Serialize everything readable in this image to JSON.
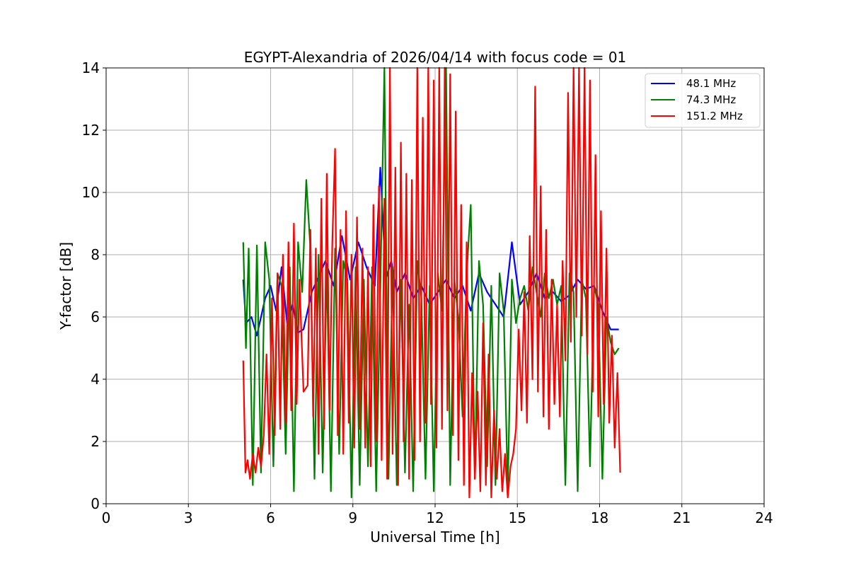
{
  "chart_data": {
    "type": "line",
    "title": "EGYPT-Alexandria of 2026/04/14 with focus code = 01",
    "xlabel": "Universal Time [h]",
    "ylabel": "Y-factor [dB]",
    "xlim": [
      0,
      24
    ],
    "ylim": [
      0,
      14
    ],
    "xticks": [
      "0",
      "3",
      "6",
      "9",
      "12",
      "15",
      "18",
      "21",
      "24"
    ],
    "yticks": [
      "0",
      "2",
      "4",
      "6",
      "8",
      "10",
      "12",
      "14"
    ],
    "grid": true,
    "legend_position": "top-right",
    "series": [
      {
        "name": " 48.1 MHz",
        "color": "#0000ff",
        "x": [
          5.0,
          5.1,
          5.3,
          5.5,
          5.8,
          6.0,
          6.2,
          6.4,
          6.6,
          6.8,
          7.0,
          7.2,
          7.5,
          7.8,
          8.0,
          8.3,
          8.6,
          8.9,
          9.2,
          9.5,
          9.8,
          10.0,
          10.2,
          10.4,
          10.6,
          10.9,
          11.2,
          11.5,
          11.8,
          12.1,
          12.4,
          12.7,
          13.0,
          13.3,
          13.6,
          13.9,
          14.2,
          14.5,
          14.8,
          15.1,
          15.4,
          15.7,
          16.0,
          16.3,
          16.6,
          16.9,
          17.2,
          17.5,
          17.8,
          18.1,
          18.4,
          18.7
        ],
        "y": [
          7.2,
          5.8,
          6.0,
          5.4,
          6.6,
          7.0,
          6.2,
          7.6,
          5.8,
          6.4,
          5.5,
          5.6,
          6.8,
          7.4,
          7.8,
          7.0,
          8.6,
          7.2,
          8.4,
          7.6,
          7.0,
          10.8,
          7.2,
          7.8,
          6.8,
          7.4,
          6.6,
          7.0,
          6.4,
          6.8,
          7.2,
          6.6,
          7.0,
          6.2,
          7.4,
          6.8,
          6.4,
          6.0,
          8.4,
          6.4,
          6.8,
          7.4,
          6.6,
          6.8,
          6.5,
          6.7,
          7.2,
          6.9,
          7.0,
          6.2,
          5.6,
          5.6
        ]
      },
      {
        "name": " 74.3 MHz",
        "color": "#008000",
        "x": [
          5.0,
          5.1,
          5.2,
          5.35,
          5.5,
          5.65,
          5.8,
          5.95,
          6.1,
          6.25,
          6.4,
          6.55,
          6.7,
          6.85,
          7.0,
          7.15,
          7.3,
          7.45,
          7.6,
          7.75,
          7.9,
          8.05,
          8.2,
          8.35,
          8.5,
          8.65,
          8.8,
          8.95,
          9.1,
          9.25,
          9.4,
          9.55,
          9.7,
          9.85,
          10.0,
          10.15,
          10.3,
          10.45,
          10.6,
          10.75,
          10.9,
          11.05,
          11.2,
          11.35,
          11.5,
          11.65,
          11.8,
          11.95,
          12.1,
          12.25,
          12.4,
          12.55,
          12.7,
          12.85,
          13.0,
          13.15,
          13.3,
          13.45,
          13.6,
          13.75,
          13.9,
          14.05,
          14.2,
          14.35,
          14.5,
          14.65,
          14.8,
          14.95,
          15.1,
          15.25,
          15.4,
          15.55,
          15.7,
          15.85,
          16.0,
          16.15,
          16.3,
          16.45,
          16.6,
          16.75,
          16.9,
          17.05,
          17.2,
          17.35,
          17.5,
          17.65,
          17.8,
          17.95,
          18.1,
          18.25,
          18.4,
          18.55,
          18.7
        ],
        "y": [
          8.4,
          5.0,
          8.2,
          0.6,
          8.3,
          1.0,
          8.4,
          7.2,
          1.2,
          7.4,
          7.0,
          1.6,
          7.6,
          0.4,
          8.4,
          6.8,
          10.4,
          8.2,
          0.8,
          8.0,
          1.0,
          7.6,
          0.4,
          8.2,
          1.6,
          7.8,
          7.2,
          0.2,
          7.6,
          0.6,
          7.2,
          1.2,
          7.6,
          0.4,
          6.8,
          14.0,
          0.8,
          7.6,
          0.6,
          7.2,
          1.0,
          6.4,
          0.4,
          7.8,
          6.6,
          0.8,
          7.0,
          0.4,
          7.4,
          6.2,
          14.0,
          0.6,
          7.2,
          6.0,
          2.8,
          7.4,
          9.6,
          0.8,
          7.8,
          6.4,
          1.2,
          7.0,
          0.6,
          7.4,
          6.2,
          0.4,
          7.2,
          5.8,
          6.6,
          7.0,
          6.2,
          7.6,
          6.8,
          6.0,
          7.4,
          6.6,
          7.2,
          6.4,
          7.0,
          0.6,
          7.4,
          6.8,
          0.4,
          7.2,
          6.6,
          1.2,
          7.0,
          6.4,
          0.8,
          6.0,
          5.2,
          4.8,
          5.0
        ]
      },
      {
        "name": "151.2 MHz",
        "color": "#ff0000",
        "x": [
          5.0,
          5.08,
          5.16,
          5.25,
          5.35,
          5.45,
          5.55,
          5.65,
          5.75,
          5.85,
          5.95,
          6.05,
          6.15,
          6.25,
          6.35,
          6.45,
          6.55,
          6.65,
          6.75,
          6.85,
          6.95,
          7.05,
          7.2,
          7.35,
          7.45,
          7.55,
          7.65,
          7.75,
          7.85,
          7.95,
          8.05,
          8.15,
          8.25,
          8.35,
          8.45,
          8.55,
          8.65,
          8.75,
          8.85,
          8.95,
          9.05,
          9.15,
          9.25,
          9.35,
          9.45,
          9.55,
          9.65,
          9.75,
          9.85,
          9.95,
          10.05,
          10.15,
          10.25,
          10.35,
          10.45,
          10.55,
          10.65,
          10.75,
          10.85,
          10.95,
          11.05,
          11.15,
          11.25,
          11.35,
          11.45,
          11.55,
          11.65,
          11.75,
          11.85,
          11.95,
          12.05,
          12.15,
          12.25,
          12.35,
          12.45,
          12.55,
          12.65,
          12.75,
          12.85,
          12.95,
          13.05,
          13.15,
          13.25,
          13.35,
          13.45,
          13.55,
          13.65,
          13.75,
          13.85,
          13.95,
          14.05,
          14.15,
          14.25,
          14.35,
          14.45,
          14.55,
          14.65,
          14.75,
          14.85,
          14.95,
          15.05,
          15.15,
          15.25,
          15.35,
          15.45,
          15.55,
          15.65,
          15.75,
          15.85,
          15.95,
          16.05,
          16.15,
          16.25,
          16.35,
          16.45,
          16.55,
          16.65,
          16.75,
          16.85,
          16.95,
          17.05,
          17.15,
          17.25,
          17.35,
          17.45,
          17.55,
          17.65,
          17.75,
          17.85,
          17.95,
          18.05,
          18.15,
          18.25,
          18.35,
          18.45,
          18.55,
          18.65,
          18.75
        ],
        "y": [
          4.6,
          1.0,
          1.4,
          0.8,
          1.6,
          1.0,
          1.8,
          1.2,
          2.2,
          4.8,
          1.6,
          6.6,
          2.2,
          7.4,
          2.4,
          8.0,
          2.6,
          8.4,
          3.0,
          9.0,
          3.2,
          7.2,
          3.6,
          3.8,
          8.8,
          2.8,
          8.2,
          1.6,
          9.8,
          2.4,
          10.6,
          3.0,
          8.4,
          11.4,
          2.2,
          8.8,
          1.6,
          9.4,
          2.6,
          8.0,
          1.8,
          9.2,
          2.4,
          8.2,
          1.8,
          7.6,
          1.2,
          9.6,
          2.0,
          10.2,
          1.4,
          9.8,
          0.8,
          14.0,
          1.6,
          10.8,
          0.6,
          11.6,
          2.0,
          10.6,
          0.8,
          10.4,
          1.4,
          14.0,
          2.0,
          12.4,
          2.6,
          14.0,
          3.2,
          13.6,
          1.8,
          14.0,
          2.4,
          14.0,
          3.0,
          13.8,
          2.2,
          12.6,
          1.4,
          9.6,
          0.6,
          8.4,
          0.2,
          4.2,
          0.8,
          3.6,
          0.4,
          5.8,
          0.6,
          4.8,
          0.2,
          3.0,
          0.8,
          2.4,
          0.4,
          1.6,
          0.2,
          1.2,
          1.6,
          2.4,
          5.6,
          3.0,
          6.8,
          2.6,
          8.6,
          4.0,
          13.4,
          3.6,
          10.2,
          2.8,
          8.8,
          2.4,
          7.2,
          3.2,
          6.4,
          2.8,
          7.8,
          4.6,
          13.2,
          5.2,
          14.0,
          6.0,
          14.0,
          5.4,
          14.0,
          4.8,
          13.6,
          3.6,
          11.2,
          2.8,
          9.4,
          3.2,
          8.2,
          2.6,
          5.4,
          1.8,
          4.2,
          1.0
        ]
      }
    ]
  }
}
